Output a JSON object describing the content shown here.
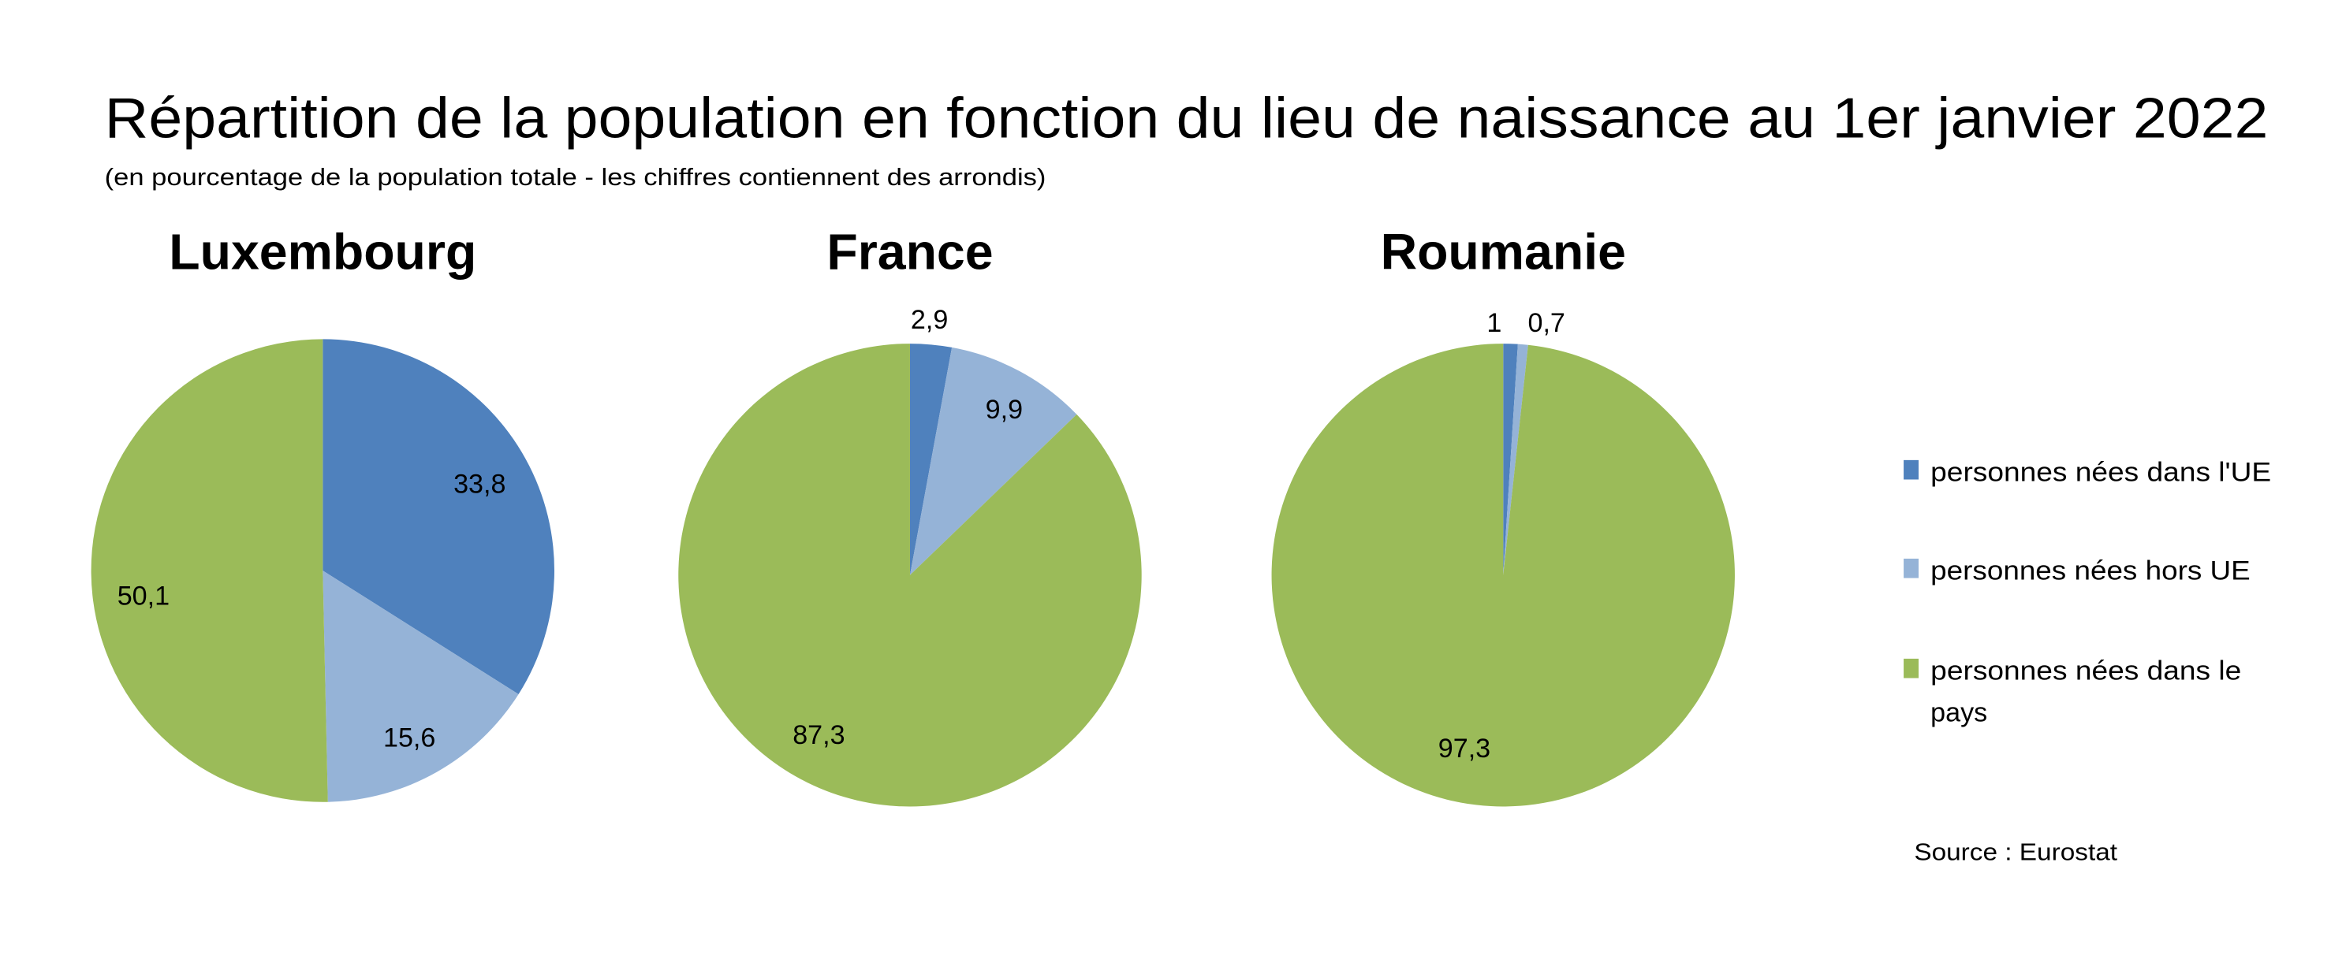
{
  "chart_data": [
    {
      "type": "pie",
      "title": "Luxembourg",
      "categories": [
        "personnes nées dans l'UE",
        "personnes nées hors UE",
        "personnes nées dans le pays"
      ],
      "values": [
        33.8,
        15.6,
        50.1
      ],
      "labels": [
        "33,8",
        "15,6",
        "50,1"
      ]
    },
    {
      "type": "pie",
      "title": "France",
      "categories": [
        "personnes nées dans l'UE",
        "personnes nées hors UE",
        "personnes nées dans le pays"
      ],
      "values": [
        2.9,
        9.9,
        87.3
      ],
      "labels": [
        "2,9",
        "9,9",
        "87,3"
      ]
    },
    {
      "type": "pie",
      "title": "Roumanie",
      "categories": [
        "personnes nées dans l'UE",
        "personnes nées hors UE",
        "personnes nées dans le pays"
      ],
      "values": [
        1,
        0.7,
        97.3
      ],
      "labels": [
        "1",
        "0,7",
        "97,3"
      ]
    }
  ],
  "header": {
    "title": "Répartition de la population en fonction du lieu de naissance au 1er janvier 2022",
    "subtitle": "(en pourcentage de la population totale - les chiffres contiennent des arrondis)"
  },
  "legend": {
    "placement": "right",
    "items": [
      {
        "label": "personnes nées dans l'UE",
        "color": "#4F81BD"
      },
      {
        "label_line1": "personnes nées hors UE",
        "color": "#95B3D7"
      },
      {
        "label_line1": "personnes nées dans le",
        "label_line2": "pays",
        "color": "#9BBB59"
      }
    ]
  },
  "source": "Source : Eurostat",
  "colors": [
    "#4F81BD",
    "#95B3D7",
    "#9BBB59"
  ]
}
